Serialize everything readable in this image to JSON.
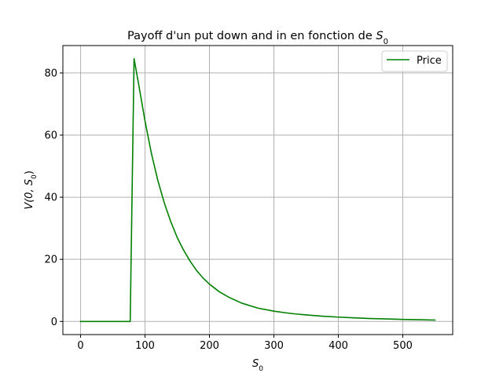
{
  "chart_data": {
    "type": "line",
    "title_prefix": "Payoff d'un put down and in en fonction de ",
    "title_var": "S",
    "title_sub": "0",
    "xlabel_var": "S",
    "xlabel_sub": "0",
    "ylabel_prefix": "V(0, ",
    "ylabel_var": "S",
    "ylabel_sub": "0",
    "ylabel_suffix": ")",
    "xlim": [
      -27.5,
      577.5
    ],
    "ylim": [
      -4.23,
      88.83
    ],
    "xticks": [
      0,
      100,
      200,
      300,
      400,
      500
    ],
    "xtick_labels": [
      "0",
      "100",
      "200",
      "300",
      "400",
      "500"
    ],
    "yticks": [
      0,
      20,
      40,
      60,
      80
    ],
    "ytick_labels": [
      "0",
      "20",
      "40",
      "60",
      "80"
    ],
    "grid": true,
    "legend_position": "upper right",
    "series": [
      {
        "name": "Price",
        "color": "#008000",
        "x": [
          0,
          10,
          20,
          30,
          40,
          50,
          60,
          70,
          77,
          83,
          90,
          100,
          110,
          120,
          130,
          140,
          150,
          160,
          170,
          180,
          190,
          200,
          215,
          230,
          250,
          275,
          300,
          325,
          350,
          375,
          400,
          425,
          450,
          475,
          500,
          525,
          550
        ],
        "y": [
          0,
          0,
          0,
          0,
          0,
          0,
          0,
          0,
          0,
          84.6,
          76.5,
          64.5,
          54.0,
          45.3,
          38.1,
          32.1,
          27.0,
          22.9,
          19.4,
          16.4,
          14.0,
          12.0,
          9.6,
          7.8,
          5.9,
          4.3,
          3.3,
          2.6,
          2.1,
          1.7,
          1.4,
          1.15,
          0.95,
          0.8,
          0.65,
          0.55,
          0.45
        ]
      }
    ]
  }
}
